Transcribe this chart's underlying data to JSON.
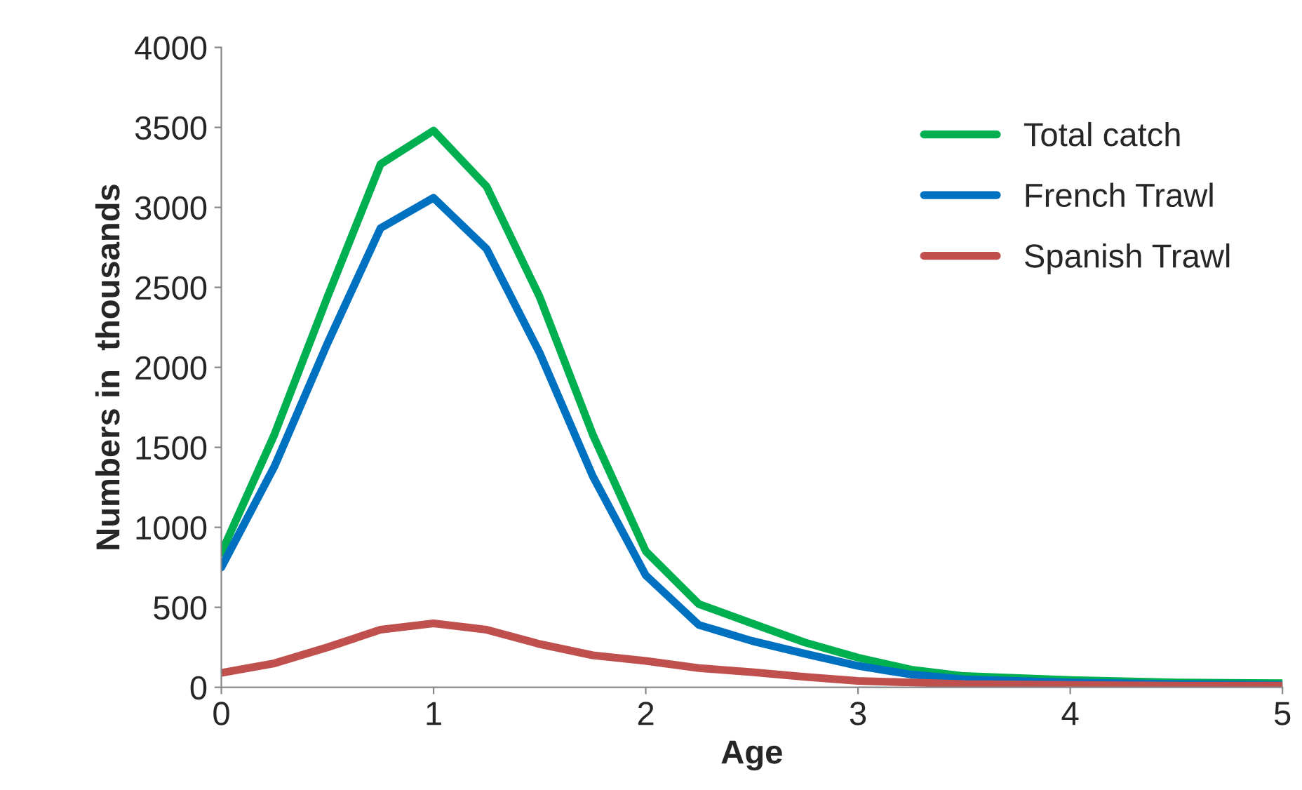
{
  "chart_data": {
    "type": "line",
    "xlabel": "Age",
    "ylabel": "Numbers in  thousands",
    "x": [
      0,
      0.25,
      0.5,
      0.75,
      1,
      1.25,
      1.5,
      1.75,
      2,
      2.25,
      2.5,
      2.75,
      3,
      3.25,
      3.5,
      4,
      4.5,
      5
    ],
    "series": [
      {
        "name": "Total catch",
        "color": "#00b050",
        "values": [
          840,
          1580,
          2440,
          3270,
          3480,
          3130,
          2440,
          1580,
          850,
          520,
          400,
          280,
          185,
          110,
          70,
          45,
          30,
          25
        ]
      },
      {
        "name": "French Trawl",
        "color": "#0070c0",
        "values": [
          750,
          1380,
          2150,
          2870,
          3060,
          2740,
          2090,
          1320,
          700,
          390,
          290,
          210,
          134,
          80,
          50,
          30,
          20,
          15
        ]
      },
      {
        "name": "Spanish Trawl",
        "color": "#c0504d",
        "values": [
          90,
          150,
          250,
          360,
          400,
          360,
          270,
          200,
          165,
          120,
          95,
          65,
          40,
          30,
          20,
          15,
          10,
          10
        ]
      }
    ],
    "xlim": [
      0,
      5
    ],
    "xticks": [
      0,
      1,
      2,
      3,
      4,
      5
    ],
    "ylim": [
      0,
      4000
    ],
    "yticks": [
      0,
      500,
      1000,
      1500,
      2000,
      2500,
      3000,
      3500,
      4000
    ],
    "grid": false,
    "legend": "top right",
    "marker": "none",
    "line_style": "solid"
  }
}
